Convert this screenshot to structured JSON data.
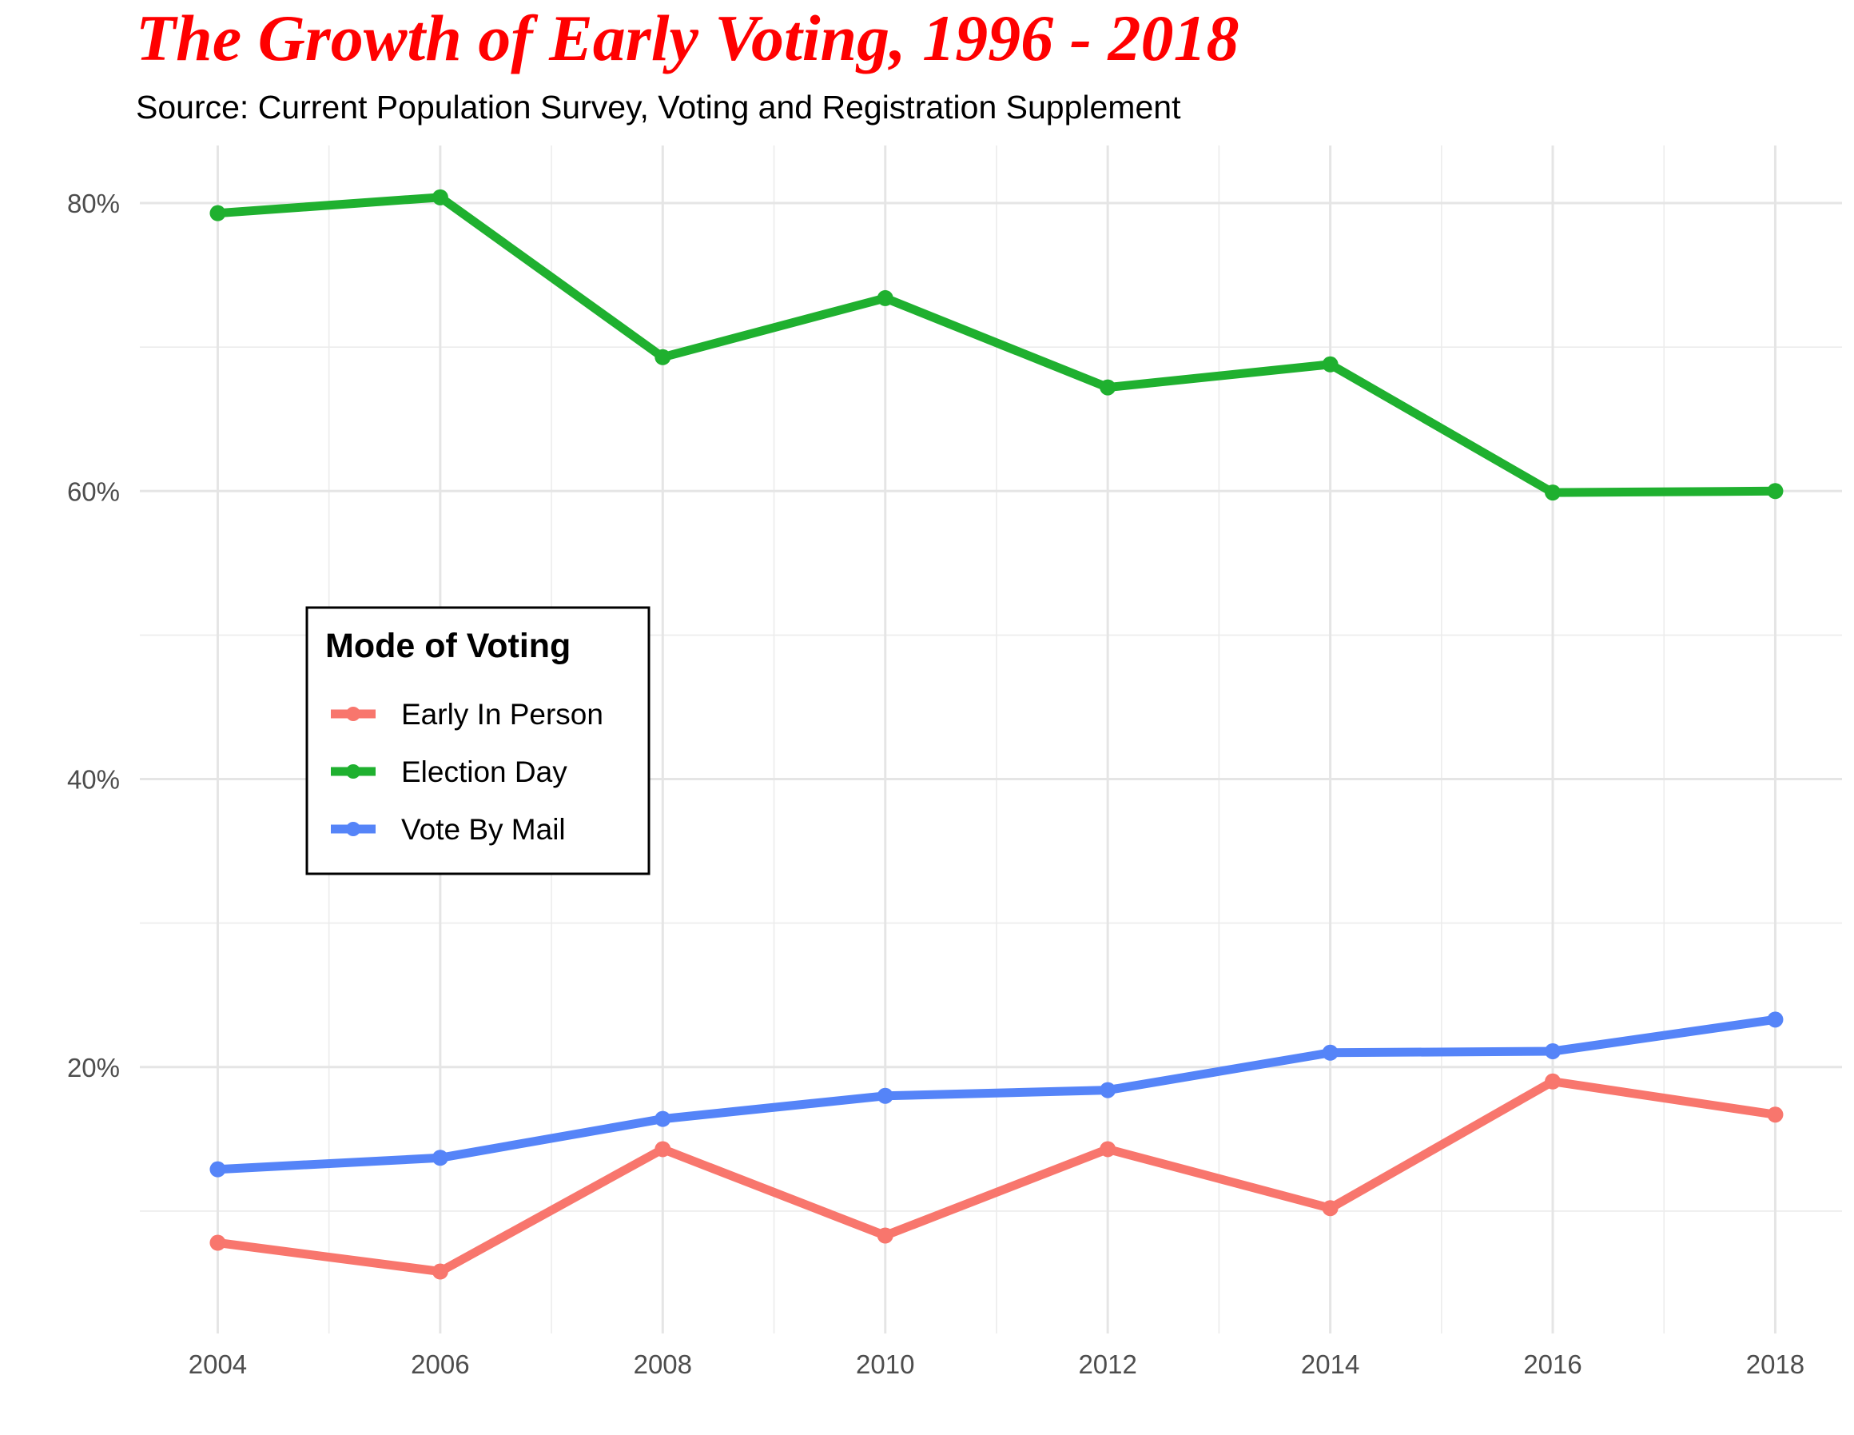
{
  "chart_data": {
    "type": "line",
    "title": "The Growth of Early Voting, 1996 - 2018",
    "subtitle": "Source: Current Population Survey, Voting and Registration Supplement",
    "x": [
      2004,
      2006,
      2008,
      2010,
      2012,
      2014,
      2016,
      2018
    ],
    "xticks": [
      "2004",
      "2006",
      "2008",
      "2010",
      "2012",
      "2014",
      "2016",
      "2018"
    ],
    "xlim": [
      2003.3,
      2018.6
    ],
    "yticks": [
      "20%",
      "40%",
      "60%",
      "80%"
    ],
    "ylim": [
      0.015,
      0.84
    ],
    "grid": true,
    "legend": {
      "title": "Mode of Voting",
      "placement": "left-center"
    },
    "title_color": "#ff0000",
    "series": [
      {
        "name": "Early In Person",
        "color": "#f8766d",
        "values": [
          0.078,
          0.058,
          0.143,
          0.083,
          0.143,
          0.102,
          0.19,
          0.167
        ]
      },
      {
        "name": "Election Day",
        "color": "#1fb02f",
        "values": [
          0.793,
          0.804,
          0.693,
          0.734,
          0.672,
          0.688,
          0.599,
          0.6
        ]
      },
      {
        "name": "Vote By Mail",
        "color": "#5584f8",
        "values": [
          0.129,
          0.137,
          0.164,
          0.18,
          0.184,
          0.21,
          0.211,
          0.233
        ]
      }
    ]
  }
}
